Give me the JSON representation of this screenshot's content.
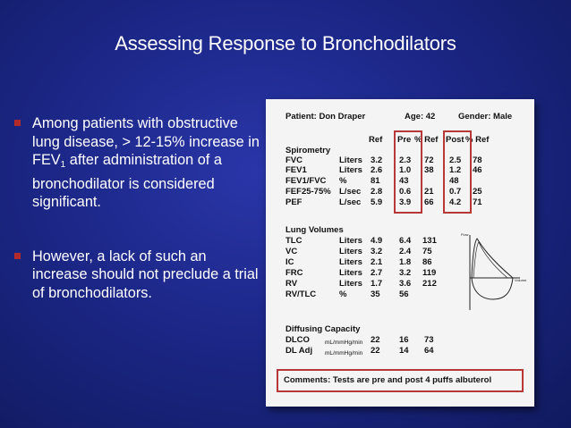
{
  "title": "Assessing Response to Bronchodilators",
  "bullets": [
    {
      "parts": [
        "Among patients with obstructive lung disease, > 12-15% increase in FEV",
        "1",
        " after administration of a bronchodilator is considered significant."
      ]
    },
    {
      "text": "However, a lack of such an increase should not preclude a trial of bronchodilators."
    }
  ],
  "report": {
    "patient": "Patient: Don Draper",
    "age": "Age: 42",
    "gender": "Gender: Male",
    "headers": {
      "ref": "Ref",
      "pre": "Pre",
      "pct_ref_pre": "% Ref",
      "post": "Post",
      "pct_ref_post": "% Ref"
    },
    "spirometry": {
      "label": "Spirometry",
      "rows": [
        {
          "name": "FVC",
          "unit": "Liters",
          "ref": "3.2",
          "pre": "2.3",
          "pre_pct": "72",
          "post": "2.5",
          "post_pct": "78"
        },
        {
          "name": "FEV1",
          "unit": "Liters",
          "ref": "2.6",
          "pre": "1.0",
          "pre_pct": "38",
          "post": "1.2",
          "post_pct": "46"
        },
        {
          "name": "FEV1/FVC",
          "unit": "%",
          "ref": "81",
          "pre": "43",
          "pre_pct": "",
          "post": "48",
          "post_pct": ""
        },
        {
          "name": "FEF25-75%",
          "unit": "L/sec",
          "ref": "2.8",
          "pre": "0.6",
          "pre_pct": "21",
          "post": "0.7",
          "post_pct": "25"
        },
        {
          "name": "PEF",
          "unit": "L/sec",
          "ref": "5.9",
          "pre": "3.9",
          "pre_pct": "66",
          "post": "4.2",
          "post_pct": "71"
        }
      ]
    },
    "lung_volumes": {
      "label": "Lung Volumes",
      "rows": [
        {
          "name": "TLC",
          "unit": "Liters",
          "ref": "4.9",
          "pre": "6.4",
          "pre_pct": "131"
        },
        {
          "name": "VC",
          "unit": "Liters",
          "ref": "3.2",
          "pre": "2.4",
          "pre_pct": "75"
        },
        {
          "name": "IC",
          "unit": "Liters",
          "ref": "2.1",
          "pre": "1.8",
          "pre_pct": "86"
        },
        {
          "name": "FRC",
          "unit": "Liters",
          "ref": "2.7",
          "pre": "3.2",
          "pre_pct": "119"
        },
        {
          "name": "RV",
          "unit": "Liters",
          "ref": "1.7",
          "pre": "3.6",
          "pre_pct": "212"
        },
        {
          "name": "RV/TLC",
          "unit": "%",
          "ref": "35",
          "pre": "56",
          "pre_pct": ""
        }
      ]
    },
    "diffusing": {
      "label": "Diffusing Capacity",
      "rows": [
        {
          "name": "DLCO",
          "unit": "mL/mmHg/min",
          "ref": "22",
          "pre": "16",
          "pre_pct": "73"
        },
        {
          "name": "DL Adj",
          "unit": "mL/mmHg/min",
          "ref": "22",
          "pre": "14",
          "pre_pct": "64"
        }
      ]
    },
    "loop_labels": {
      "flow": "Flow",
      "volume": "Volume"
    },
    "comments": "Comments: Tests are pre and post 4 puffs albuterol"
  },
  "colors": {
    "highlight_box": "#b83838",
    "bullet": "#b22a2a"
  }
}
